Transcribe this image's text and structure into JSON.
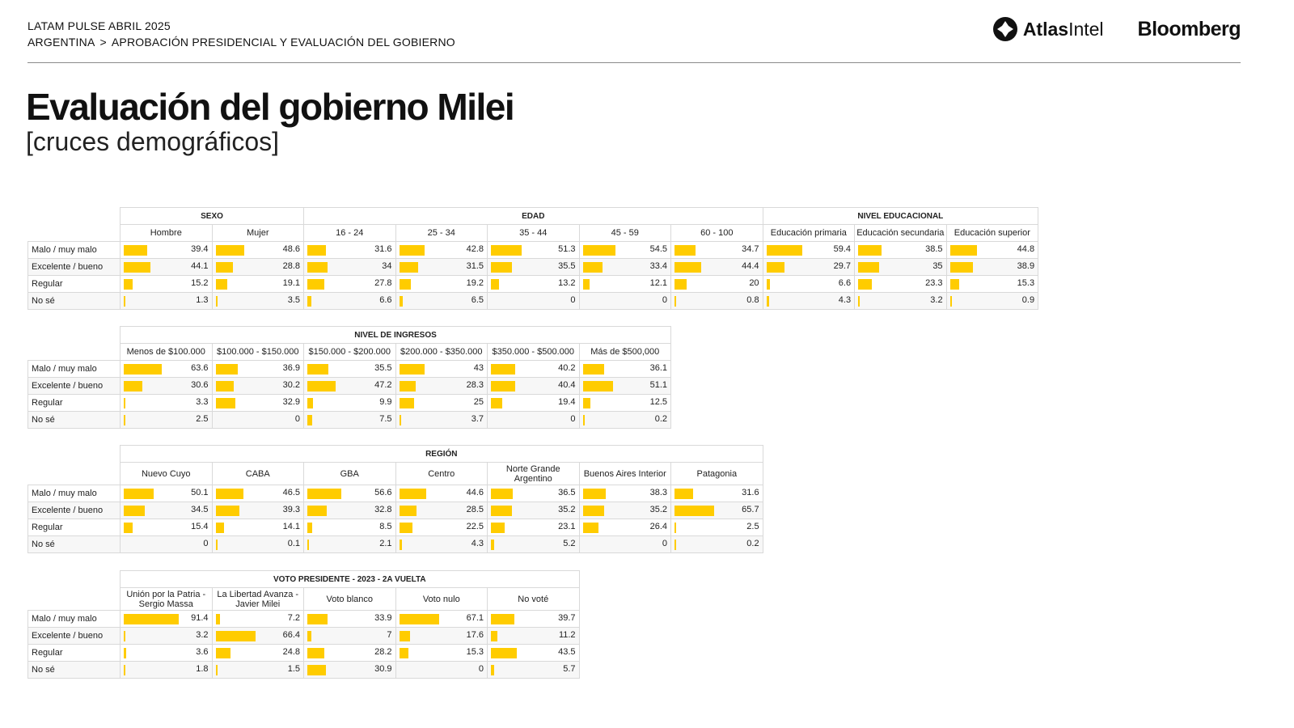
{
  "header": {
    "line1": "LATAM PULSE ABRIL 2025",
    "country": "ARGENTINA",
    "separator": ">",
    "section": "APROBACIÓN PRESIDENCIAL Y EVALUACIÓN DEL GOBIERNO"
  },
  "logos": {
    "atlas_bold": "Atlas",
    "atlas_light": "Intel",
    "bloomberg": "Bloomberg"
  },
  "title": "Evaluación del gobierno Milei",
  "subtitle": "[cruces demográficos]",
  "colors": {
    "bar": "#ffcc00",
    "rule": "#8a8a8a",
    "border": "#d9d9d9"
  },
  "chart_data": [
    {
      "type": "table",
      "rows": [
        "Malo / muy malo",
        "Excelente / bueno",
        "Regular",
        "No sé"
      ],
      "groups": [
        {
          "label": "SEXO",
          "span": 2
        },
        {
          "label": "EDAD",
          "span": 5
        },
        {
          "label": "NIVEL EDUCACIONAL",
          "span": 3
        }
      ],
      "columns": [
        "Hombre",
        "Mujer",
        "16 - 24",
        "25 - 34",
        "35 - 44",
        "45 - 59",
        "60 - 100",
        "Educación primaria",
        "Educación secundaria",
        "Educación superior"
      ],
      "values": [
        [
          "39.4",
          "48.6",
          "31.6",
          "42.8",
          "51.3",
          "54.5",
          "34.7",
          "59.4",
          "38.5",
          "44.8"
        ],
        [
          "44.1",
          "28.8",
          "34",
          "31.5",
          "35.5",
          "33.4",
          "44.4",
          "29.7",
          "35",
          "38.9"
        ],
        [
          "15.2",
          "19.1",
          "27.8",
          "19.2",
          "13.2",
          "12.1",
          "20",
          "6.6",
          "23.3",
          "15.3"
        ],
        [
          "1.3",
          "3.5",
          "6.6",
          "6.5",
          "0",
          "0",
          "0.8",
          "4.3",
          "3.2",
          "0.9"
        ]
      ]
    },
    {
      "type": "table",
      "rows": [
        "Malo / muy malo",
        "Excelente / bueno",
        "Regular",
        "No sé"
      ],
      "groups": [
        {
          "label": "NIVEL DE INGRESOS",
          "span": 6
        }
      ],
      "columns": [
        "Menos de $100.000",
        "$100.000 - $150.000",
        "$150.000 - $200.000",
        "$200.000 - $350.000",
        "$350.000 - $500.000",
        "Más de $500,000"
      ],
      "values": [
        [
          "63.6",
          "36.9",
          "35.5",
          "43",
          "40.2",
          "36.1"
        ],
        [
          "30.6",
          "30.2",
          "47.2",
          "28.3",
          "40.4",
          "51.1"
        ],
        [
          "3.3",
          "32.9",
          "9.9",
          "25",
          "19.4",
          "12.5"
        ],
        [
          "2.5",
          "0",
          "7.5",
          "3.7",
          "0",
          "0.2"
        ]
      ]
    },
    {
      "type": "table",
      "rows": [
        "Malo / muy malo",
        "Excelente / bueno",
        "Regular",
        "No sé"
      ],
      "groups": [
        {
          "label": "REGIÓN",
          "span": 7
        }
      ],
      "columns": [
        "Nuevo Cuyo",
        "CABA",
        "GBA",
        "Centro",
        "Norte Grande Argentino",
        "Buenos Aires Interior",
        "Patagonia"
      ],
      "values": [
        [
          "50.1",
          "46.5",
          "56.6",
          "44.6",
          "36.5",
          "38.3",
          "31.6"
        ],
        [
          "34.5",
          "39.3",
          "32.8",
          "28.5",
          "35.2",
          "35.2",
          "65.7"
        ],
        [
          "15.4",
          "14.1",
          "8.5",
          "22.5",
          "23.1",
          "26.4",
          "2.5"
        ],
        [
          "0",
          "0.1",
          "2.1",
          "4.3",
          "5.2",
          "0",
          "0.2"
        ]
      ]
    },
    {
      "type": "table",
      "rows": [
        "Malo / muy malo",
        "Excelente / bueno",
        "Regular",
        "No sé"
      ],
      "groups": [
        {
          "label": "VOTO PRESIDENTE - 2023 - 2A VUELTA",
          "span": 5
        }
      ],
      "columns": [
        "Unión por la Patria - Sergio Massa",
        "La Libertad Avanza - Javier Milei",
        "Voto blanco",
        "Voto nulo",
        "No voté"
      ],
      "values": [
        [
          "91.4",
          "7.2",
          "33.9",
          "67.1",
          "39.7"
        ],
        [
          "3.2",
          "66.4",
          "7",
          "17.6",
          "11.2"
        ],
        [
          "3.6",
          "24.8",
          "28.2",
          "15.3",
          "43.5"
        ],
        [
          "1.8",
          "1.5",
          "30.9",
          "0",
          "5.7"
        ]
      ]
    }
  ]
}
